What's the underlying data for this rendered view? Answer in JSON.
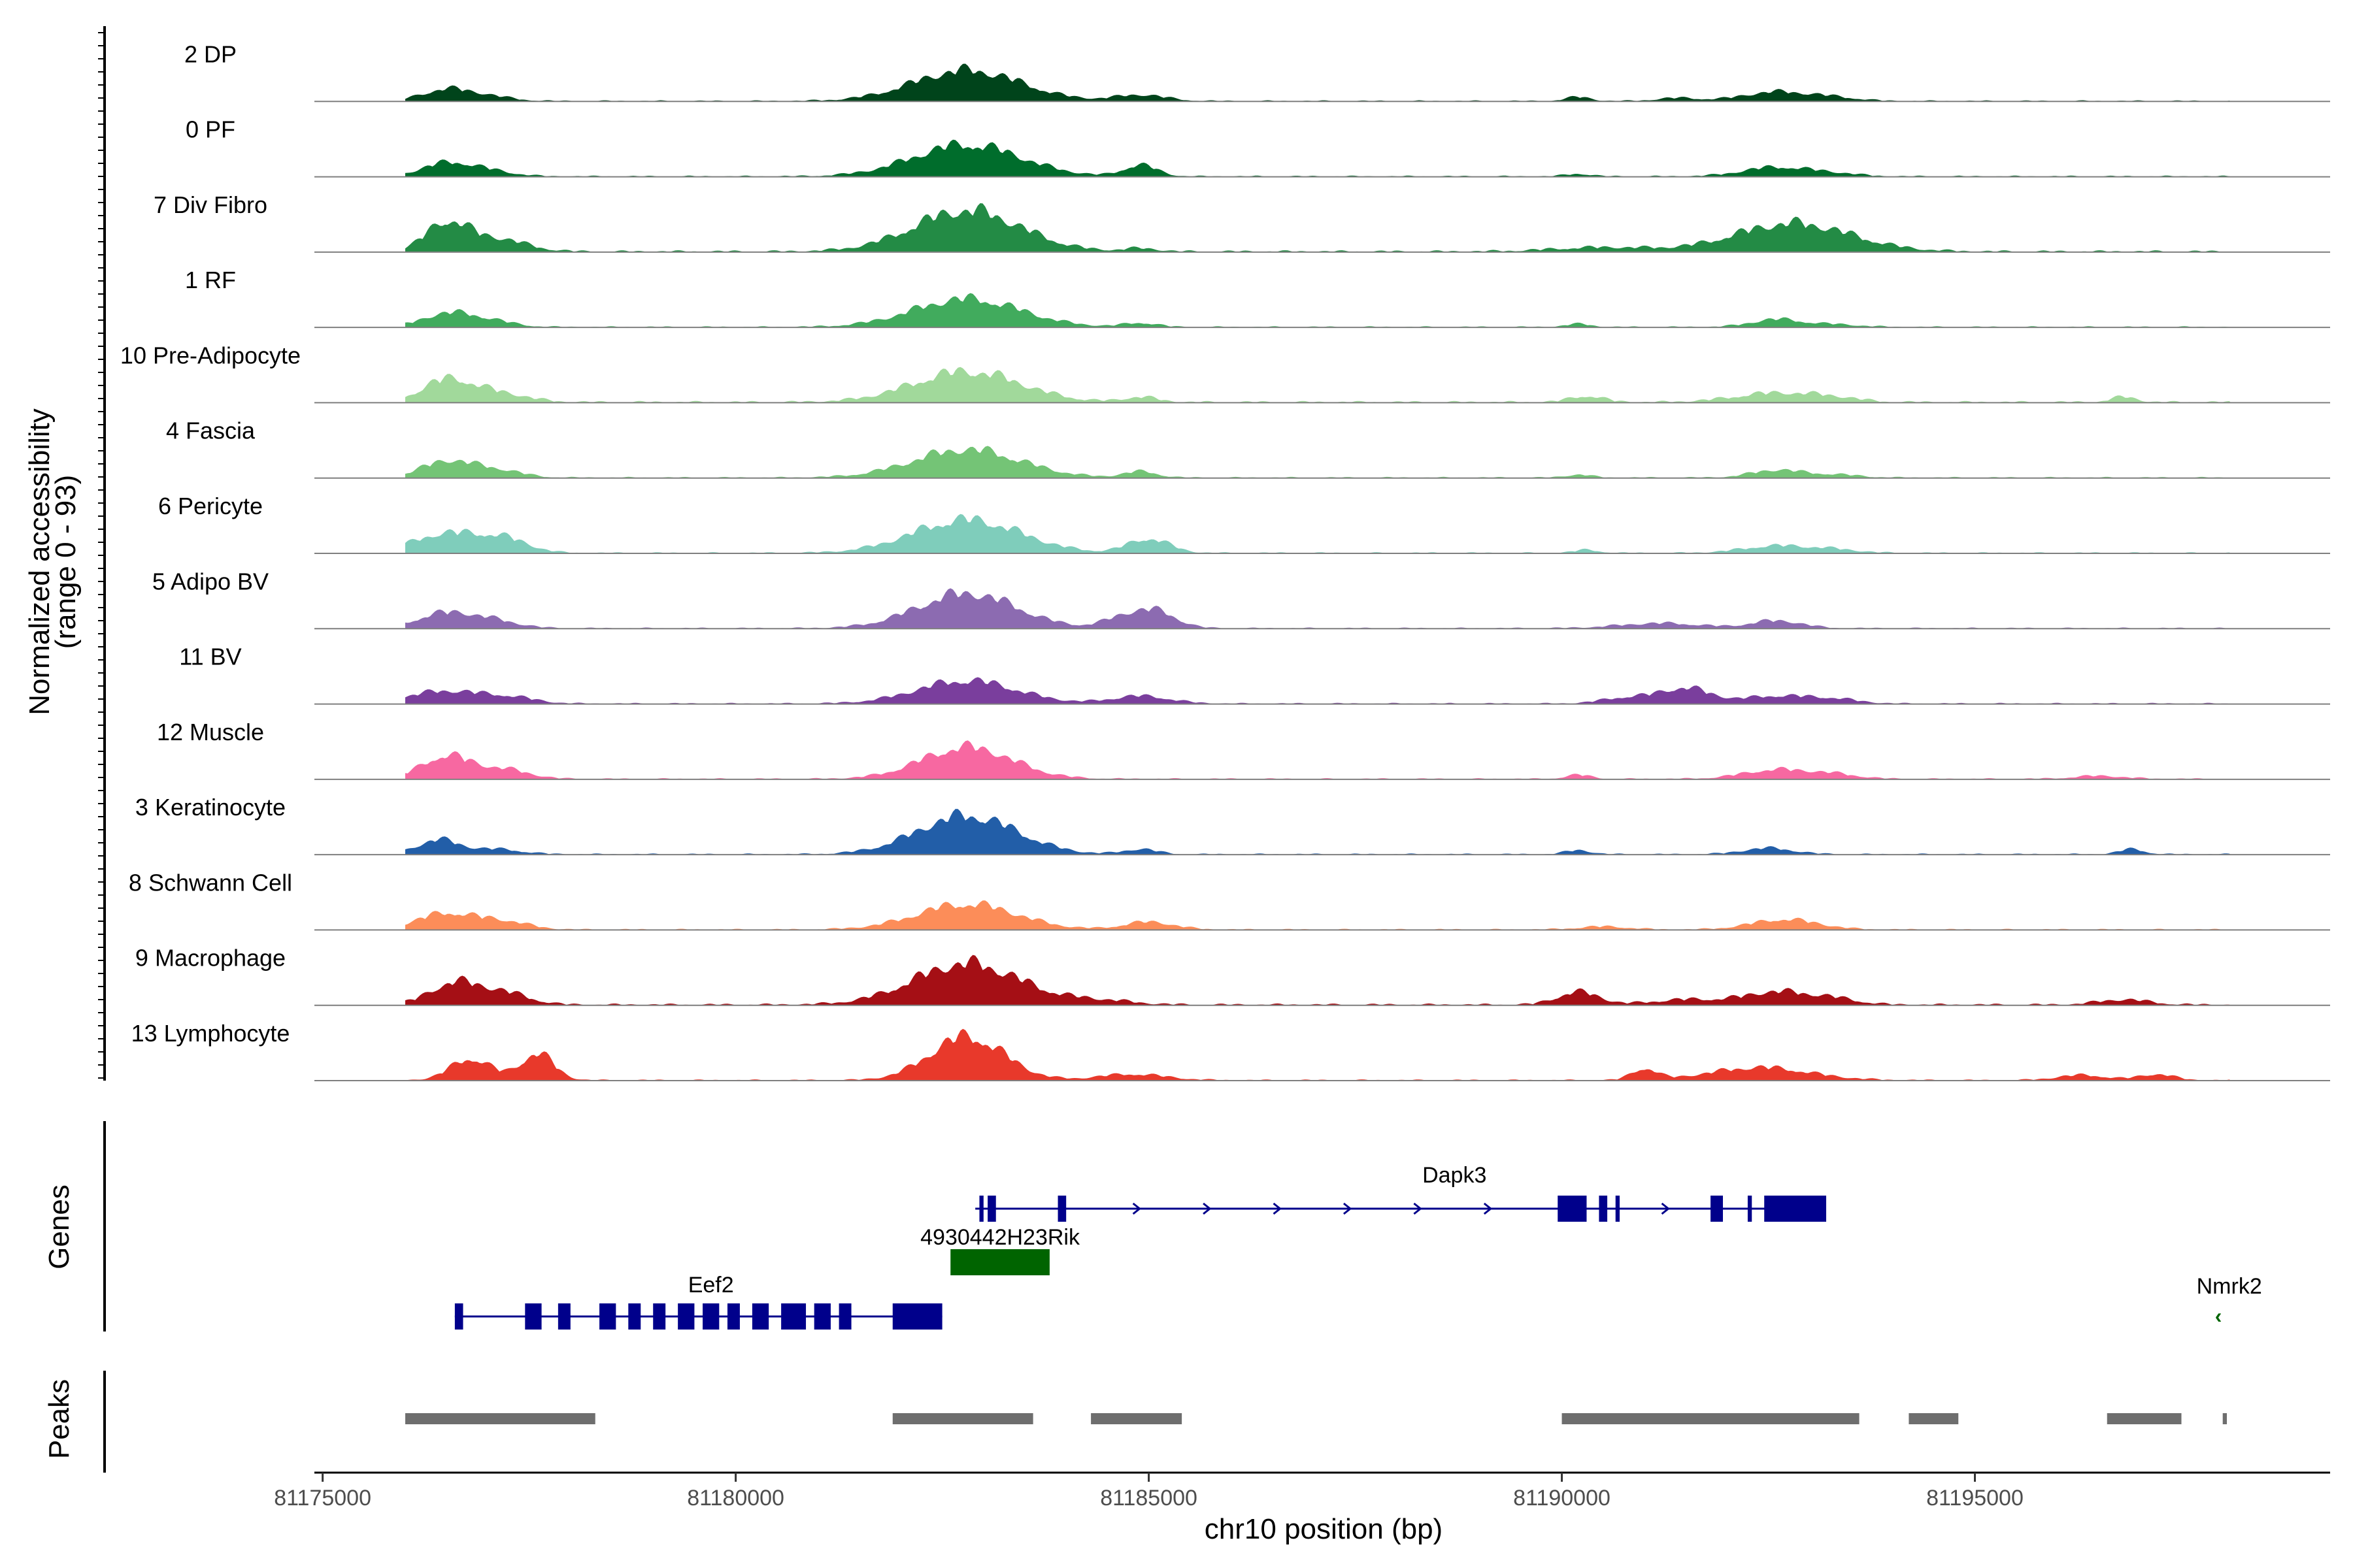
{
  "chart_data": {
    "type": "area",
    "title": "",
    "chromosome": "chr10",
    "xlabel": "chr10 position (bp)",
    "ylabel": "Normalized accessibility",
    "ylabel_range": "(range 0 - 93)",
    "ylim": [
      0,
      93
    ],
    "xlim": [
      81174900,
      81199300
    ],
    "x_ticks": [
      81175000,
      81180000,
      81185000,
      81190000,
      81195000
    ],
    "x_tick_labels": [
      "81175000",
      "81180000",
      "81185000",
      "81190000",
      "81195000"
    ],
    "series": [
      {
        "name": "2 DP",
        "color": "#00441b",
        "peaks": [
          [
            81176500,
            22,
            300
          ],
          [
            81177000,
            8,
            300
          ],
          [
            81182800,
            60,
            650
          ],
          [
            81184900,
            12,
            300
          ],
          [
            81190200,
            8,
            150
          ],
          [
            81191400,
            6,
            250
          ],
          [
            81192600,
            18,
            400
          ],
          [
            81193300,
            6,
            300
          ]
        ],
        "baseline": 2
      },
      {
        "name": "0 PF",
        "color": "#006d2c",
        "peaks": [
          [
            81176500,
            25,
            300
          ],
          [
            81177000,
            10,
            300
          ],
          [
            81182800,
            62,
            650
          ],
          [
            81184900,
            22,
            200
          ],
          [
            81190200,
            5,
            150
          ],
          [
            81192600,
            18,
            400
          ],
          [
            81193300,
            5,
            300
          ]
        ],
        "baseline": 2
      },
      {
        "name": "7 Div Fibro",
        "color": "#238b45",
        "peaks": [
          [
            81176500,
            55,
            250
          ],
          [
            81177100,
            25,
            350
          ],
          [
            81182800,
            80,
            650
          ],
          [
            81184900,
            6,
            200
          ],
          [
            81190500,
            8,
            600
          ],
          [
            81192800,
            55,
            700
          ]
        ],
        "baseline": 3
      },
      {
        "name": "1 RF",
        "color": "#41ab5d",
        "peaks": [
          [
            81176500,
            25,
            300
          ],
          [
            81177000,
            12,
            300
          ],
          [
            81182800,
            55,
            650
          ],
          [
            81184900,
            8,
            200
          ],
          [
            81190200,
            6,
            150
          ],
          [
            81192600,
            15,
            300
          ],
          [
            81193300,
            5,
            300
          ]
        ],
        "baseline": 2
      },
      {
        "name": "10 Pre-Adipocyte",
        "color": "#a1d99b",
        "peaks": [
          [
            81176500,
            42,
            300
          ],
          [
            81177100,
            18,
            350
          ],
          [
            81182800,
            60,
            650
          ],
          [
            81184900,
            10,
            200
          ],
          [
            81190300,
            12,
            200
          ],
          [
            81192600,
            18,
            500
          ],
          [
            81193300,
            6,
            300
          ],
          [
            81196800,
            10,
            150
          ]
        ],
        "baseline": 3
      },
      {
        "name": "4 Fascia",
        "color": "#74c476",
        "peaks": [
          [
            81176500,
            32,
            300
          ],
          [
            81177100,
            15,
            300
          ],
          [
            81182800,
            55,
            650
          ],
          [
            81184900,
            12,
            200
          ],
          [
            81190200,
            6,
            150
          ],
          [
            81192600,
            15,
            300
          ],
          [
            81193300,
            6,
            300
          ]
        ],
        "baseline": 2
      },
      {
        "name": "6 Pericyte",
        "color": "#7fcdbb",
        "peaks": [
          [
            81176500,
            38,
            400
          ],
          [
            81177200,
            25,
            300
          ],
          [
            81182800,
            65,
            650
          ],
          [
            81185000,
            28,
            250
          ],
          [
            81190300,
            6,
            150
          ],
          [
            81192600,
            14,
            400
          ],
          [
            81193300,
            6,
            300
          ]
        ],
        "baseline": 2
      },
      {
        "name": "5 Adipo BV",
        "color": "#8c6bb1",
        "peaks": [
          [
            81176500,
            30,
            350
          ],
          [
            81177100,
            12,
            300
          ],
          [
            81182800,
            68,
            600
          ],
          [
            81184700,
            20,
            250
          ],
          [
            81185100,
            30,
            250
          ],
          [
            81191200,
            10,
            500
          ],
          [
            81192600,
            15,
            300
          ]
        ],
        "baseline": 2
      },
      {
        "name": "11 BV",
        "color": "#7a3e9d",
        "peaks": [
          [
            81176500,
            25,
            450
          ],
          [
            81177300,
            10,
            300
          ],
          [
            81182800,
            45,
            600
          ],
          [
            81184900,
            15,
            350
          ],
          [
            81190800,
            12,
            300
          ],
          [
            81191500,
            30,
            300
          ],
          [
            81192600,
            15,
            400
          ],
          [
            81193300,
            8,
            300
          ]
        ],
        "baseline": 2
      },
      {
        "name": "12 Muscle",
        "color": "#f768a1",
        "peaks": [
          [
            81176500,
            45,
            300
          ],
          [
            81177200,
            18,
            300
          ],
          [
            81182800,
            62,
            550
          ],
          [
            81190200,
            8,
            150
          ],
          [
            81192600,
            18,
            400
          ],
          [
            81193300,
            8,
            300
          ],
          [
            81196500,
            6,
            300
          ]
        ],
        "baseline": 2
      },
      {
        "name": "3 Keratinocyte",
        "color": "#225ea8",
        "peaks": [
          [
            81176400,
            28,
            250
          ],
          [
            81177100,
            10,
            300
          ],
          [
            81182800,
            75,
            600
          ],
          [
            81184900,
            10,
            200
          ],
          [
            81190200,
            8,
            150
          ],
          [
            81192500,
            12,
            300
          ],
          [
            81196900,
            10,
            150
          ]
        ],
        "baseline": 2
      },
      {
        "name": "8 Schwann Cell",
        "color": "#fc8d59",
        "peaks": [
          [
            81176500,
            32,
            350
          ],
          [
            81177200,
            15,
            300
          ],
          [
            81182800,
            50,
            600
          ],
          [
            81185000,
            15,
            300
          ],
          [
            81190500,
            6,
            300
          ],
          [
            81192700,
            20,
            400
          ]
        ],
        "baseline": 2
      },
      {
        "name": "9 Macrophage",
        "color": "#a50f15",
        "peaks": [
          [
            81176600,
            42,
            300
          ],
          [
            81177200,
            22,
            300
          ],
          [
            81182800,
            80,
            650
          ],
          [
            81184400,
            8,
            400
          ],
          [
            81190200,
            25,
            250
          ],
          [
            81191500,
            10,
            400
          ],
          [
            81192600,
            25,
            400
          ],
          [
            81193300,
            10,
            300
          ],
          [
            81196800,
            10,
            300
          ]
        ],
        "baseline": 3
      },
      {
        "name": "13 Lymphocyte",
        "color": "#e8392b",
        "peaks": [
          [
            81176800,
            42,
            250
          ],
          [
            81177600,
            52,
            200
          ],
          [
            81182800,
            85,
            450
          ],
          [
            81184800,
            12,
            400
          ],
          [
            81191000,
            22,
            150
          ],
          [
            81192400,
            25,
            600
          ],
          [
            81196300,
            10,
            300
          ],
          [
            81197200,
            12,
            200
          ]
        ],
        "baseline": 2
      }
    ],
    "genes": [
      {
        "name": "Eef2",
        "strand": "+",
        "start": 81176600,
        "end": 81182500,
        "color": "#00008b",
        "row": 3,
        "exons": [
          [
            81176600,
            81176700
          ],
          [
            81177450,
            81177650
          ],
          [
            81177850,
            81178000
          ],
          [
            81178350,
            81178550
          ],
          [
            81178700,
            81178850
          ],
          [
            81179000,
            81179150
          ],
          [
            81179300,
            81179500
          ],
          [
            81179600,
            81179800
          ],
          [
            81179900,
            81180050
          ],
          [
            81180200,
            81180400
          ],
          [
            81180550,
            81180850
          ],
          [
            81180950,
            81181150
          ],
          [
            81181250,
            81181400
          ],
          [
            81181900,
            81182500
          ]
        ]
      },
      {
        "name": "4930442H23Rik",
        "strand": "+",
        "start": 81182600,
        "end": 81183800,
        "color": "#006400",
        "row": 2,
        "exons": [
          [
            81182600,
            81183800
          ]
        ]
      },
      {
        "name": "Dapk3",
        "strand": "+",
        "start": 81182900,
        "end": 81193200,
        "color": "#00008b",
        "row": 1,
        "exons": [
          [
            81182950,
            81183000
          ],
          [
            81183050,
            81183150
          ],
          [
            81183900,
            81184000
          ],
          [
            81189950,
            81190300
          ],
          [
            81190450,
            81190550
          ],
          [
            81190650,
            81190700
          ],
          [
            81191800,
            81191950
          ],
          [
            81192250,
            81192300
          ],
          [
            81192450,
            81193200
          ]
        ]
      },
      {
        "name": "Nmrk2",
        "strand": "-",
        "start": 81198000,
        "end": 81198100,
        "color": "#006400",
        "row": 3,
        "exons": []
      }
    ],
    "peaks": [
      [
        81176000,
        81178300
      ],
      [
        81181900,
        81183600
      ],
      [
        81184300,
        81185400
      ],
      [
        81190000,
        81193600
      ],
      [
        81194200,
        81194800
      ],
      [
        81196600,
        81197500
      ],
      [
        81198000,
        81198050
      ]
    ],
    "genes_panel_label": "Genes",
    "peaks_panel_label": "Peaks"
  }
}
